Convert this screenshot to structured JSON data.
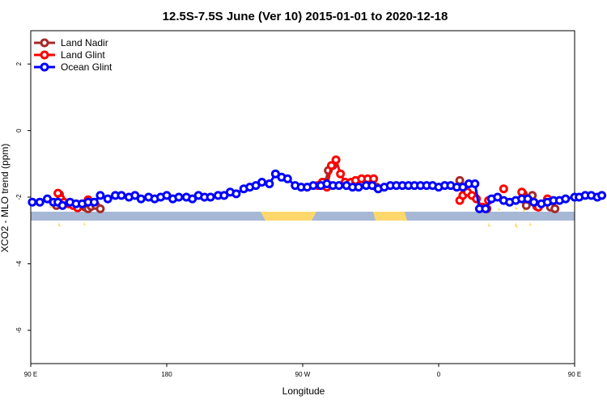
{
  "chart_data": {
    "type": "line",
    "title": "12.5S-7.5S June (Ver 10)   2015-01-01 to 2020-12-18",
    "xlabel": "Longitude",
    "ylabel": "XCO2 - MLO trend (ppm)",
    "xlim": [
      90,
      450
    ],
    "ylim": [
      -7,
      3
    ],
    "x_ticks": [
      {
        "value": 90,
        "label": "90 E"
      },
      {
        "value": 180,
        "label": "180"
      },
      {
        "value": 270,
        "label": "90 W"
      },
      {
        "value": 360,
        "label": "0"
      },
      {
        "value": 450,
        "label": "90 E"
      }
    ],
    "y_ticks": [
      {
        "value": 2,
        "label": "2"
      },
      {
        "value": 0,
        "label": "0"
      },
      {
        "value": -2,
        "label": "-2"
      },
      {
        "value": -4,
        "label": "-4"
      },
      {
        "value": -6,
        "label": "-6"
      }
    ],
    "legend_position": "top-left",
    "series": [
      {
        "name": "Land Nadir",
        "color": "#a52a2a",
        "segments": [
          [
            [
              107,
              -2.25
            ],
            [
              109,
              -1.92
            ]
          ],
          [
            [
              124,
              -2.22
            ],
            [
              126,
              -2.3
            ],
            [
              128,
              -2.35
            ],
            [
              130,
              -2.28
            ]
          ],
          [
            [
              133,
              -2.25
            ],
            [
              136,
              -2.35
            ]
          ],
          [
            [
              285,
              -1.55
            ],
            [
              287,
              -1.2
            ],
            [
              290,
              -1.05
            ]
          ],
          [
            [
              319,
              -1.7
            ]
          ],
          [
            [
              374,
              -1.5
            ]
          ],
          [
            [
              392,
              -2.35
            ]
          ],
          [
            [
              416,
              -1.9
            ],
            [
              418,
              -2.25
            ],
            [
              422,
              -1.95
            ],
            [
              425,
              -2.28
            ]
          ],
          [
            [
              434,
              -2.3
            ],
            [
              437,
              -2.35
            ]
          ]
        ]
      },
      {
        "name": "Land Glint",
        "color": "#ff0000",
        "segments": [
          [
            [
              108,
              -1.88
            ],
            [
              110,
              -2.05
            ],
            [
              112,
              -2.15
            ],
            [
              115,
              -2.2
            ],
            [
              118,
              -2.25
            ],
            [
              121,
              -2.32
            ]
          ],
          [
            [
              128,
              -2.08
            ]
          ],
          [
            [
              280,
              -1.65
            ],
            [
              283,
              -1.55
            ],
            [
              286,
              -1.7
            ],
            [
              289,
              -1.05
            ],
            [
              292,
              -0.88
            ],
            [
              295,
              -1.3
            ],
            [
              298,
              -1.55
            ],
            [
              302,
              -1.55
            ],
            [
              305,
              -1.5
            ],
            [
              309,
              -1.45
            ],
            [
              313,
              -1.45
            ],
            [
              317,
              -1.45
            ]
          ],
          [
            [
              374,
              -2.1
            ],
            [
              376,
              -1.95
            ],
            [
              379,
              -1.85
            ],
            [
              382,
              -1.95
            ],
            [
              385,
              -2.05
            ],
            [
              389,
              -2.3
            ]
          ],
          [
            [
              393,
              -2.1
            ]
          ],
          [
            [
              403,
              -1.75
            ]
          ],
          [
            [
              415,
              -1.85
            ],
            [
              419,
              -2.05
            ]
          ],
          [
            [
              426,
              -2.3
            ],
            [
              432,
              -2.05
            ]
          ]
        ]
      },
      {
        "name": "Ocean Glint",
        "color": "#0000ff",
        "segments": [
          [
            [
              91,
              -2.15
            ],
            [
              96,
              -2.15
            ],
            [
              101,
              -2.05
            ],
            [
              105,
              -2.15
            ],
            [
              108,
              -2.15
            ],
            [
              111,
              -2.25
            ],
            [
              116,
              -2.15
            ],
            [
              120,
              -2.2
            ],
            [
              124,
              -2.2
            ],
            [
              128,
              -2.15
            ],
            [
              132,
              -2.15
            ],
            [
              136,
              -1.95
            ],
            [
              141,
              -2.05
            ],
            [
              146,
              -1.95
            ],
            [
              150,
              -1.95
            ],
            [
              155,
              -2.0
            ],
            [
              159,
              -1.95
            ],
            [
              163,
              -2.05
            ],
            [
              168,
              -2.0
            ],
            [
              172,
              -2.05
            ],
            [
              176,
              -2.0
            ],
            [
              180,
              -1.95
            ],
            [
              184,
              -2.05
            ],
            [
              188,
              -2.0
            ],
            [
              193,
              -2.0
            ],
            [
              197,
              -2.05
            ],
            [
              201,
              -1.95
            ],
            [
              205,
              -2.0
            ],
            [
              209,
              -2.0
            ],
            [
              214,
              -1.95
            ],
            [
              218,
              -1.95
            ],
            [
              222,
              -1.85
            ],
            [
              226,
              -1.9
            ],
            [
              231,
              -1.75
            ],
            [
              235,
              -1.7
            ],
            [
              239,
              -1.65
            ],
            [
              243,
              -1.55
            ],
            [
              248,
              -1.6
            ],
            [
              252,
              -1.3
            ],
            [
              256,
              -1.4
            ],
            [
              260,
              -1.45
            ],
            [
              265,
              -1.65
            ],
            [
              269,
              -1.7
            ],
            [
              273,
              -1.7
            ],
            [
              277,
              -1.65
            ],
            [
              282,
              -1.65
            ],
            [
              286,
              -1.6
            ],
            [
              290,
              -1.65
            ],
            [
              294,
              -1.65
            ],
            [
              299,
              -1.65
            ],
            [
              303,
              -1.7
            ],
            [
              307,
              -1.7
            ],
            [
              312,
              -1.65
            ],
            [
              316,
              -1.65
            ],
            [
              320,
              -1.75
            ],
            [
              324,
              -1.7
            ],
            [
              328,
              -1.65
            ],
            [
              332,
              -1.65
            ],
            [
              336,
              -1.65
            ],
            [
              340,
              -1.65
            ],
            [
              344,
              -1.65
            ],
            [
              348,
              -1.65
            ],
            [
              352,
              -1.65
            ],
            [
              356,
              -1.65
            ],
            [
              360,
              -1.7
            ],
            [
              364,
              -1.65
            ],
            [
              368,
              -1.65
            ],
            [
              372,
              -1.7
            ],
            [
              376,
              -1.7
            ],
            [
              380,
              -1.6
            ],
            [
              384,
              -1.6
            ],
            [
              387,
              -2.35
            ],
            [
              391,
              -2.35
            ],
            [
              395,
              -2.05
            ],
            [
              399,
              -2.0
            ],
            [
              403,
              -2.1
            ],
            [
              407,
              -2.15
            ],
            [
              411,
              -2.1
            ],
            [
              415,
              -2.05
            ],
            [
              419,
              -2.05
            ],
            [
              423,
              -2.15
            ],
            [
              428,
              -2.2
            ],
            [
              432,
              -2.15
            ],
            [
              436,
              -2.1
            ],
            [
              440,
              -2.1
            ],
            [
              444,
              -2.05
            ],
            [
              450,
              -2.0
            ],
            [
              453,
              -2.0
            ],
            [
              457,
              -1.95
            ],
            [
              461,
              -1.95
            ],
            [
              465,
              -2.0
            ],
            [
              468,
              -1.95
            ]
          ]
        ]
      }
    ],
    "band_colors": {
      "ocean": "#a6b8d6",
      "land": "#ffd86b"
    }
  }
}
